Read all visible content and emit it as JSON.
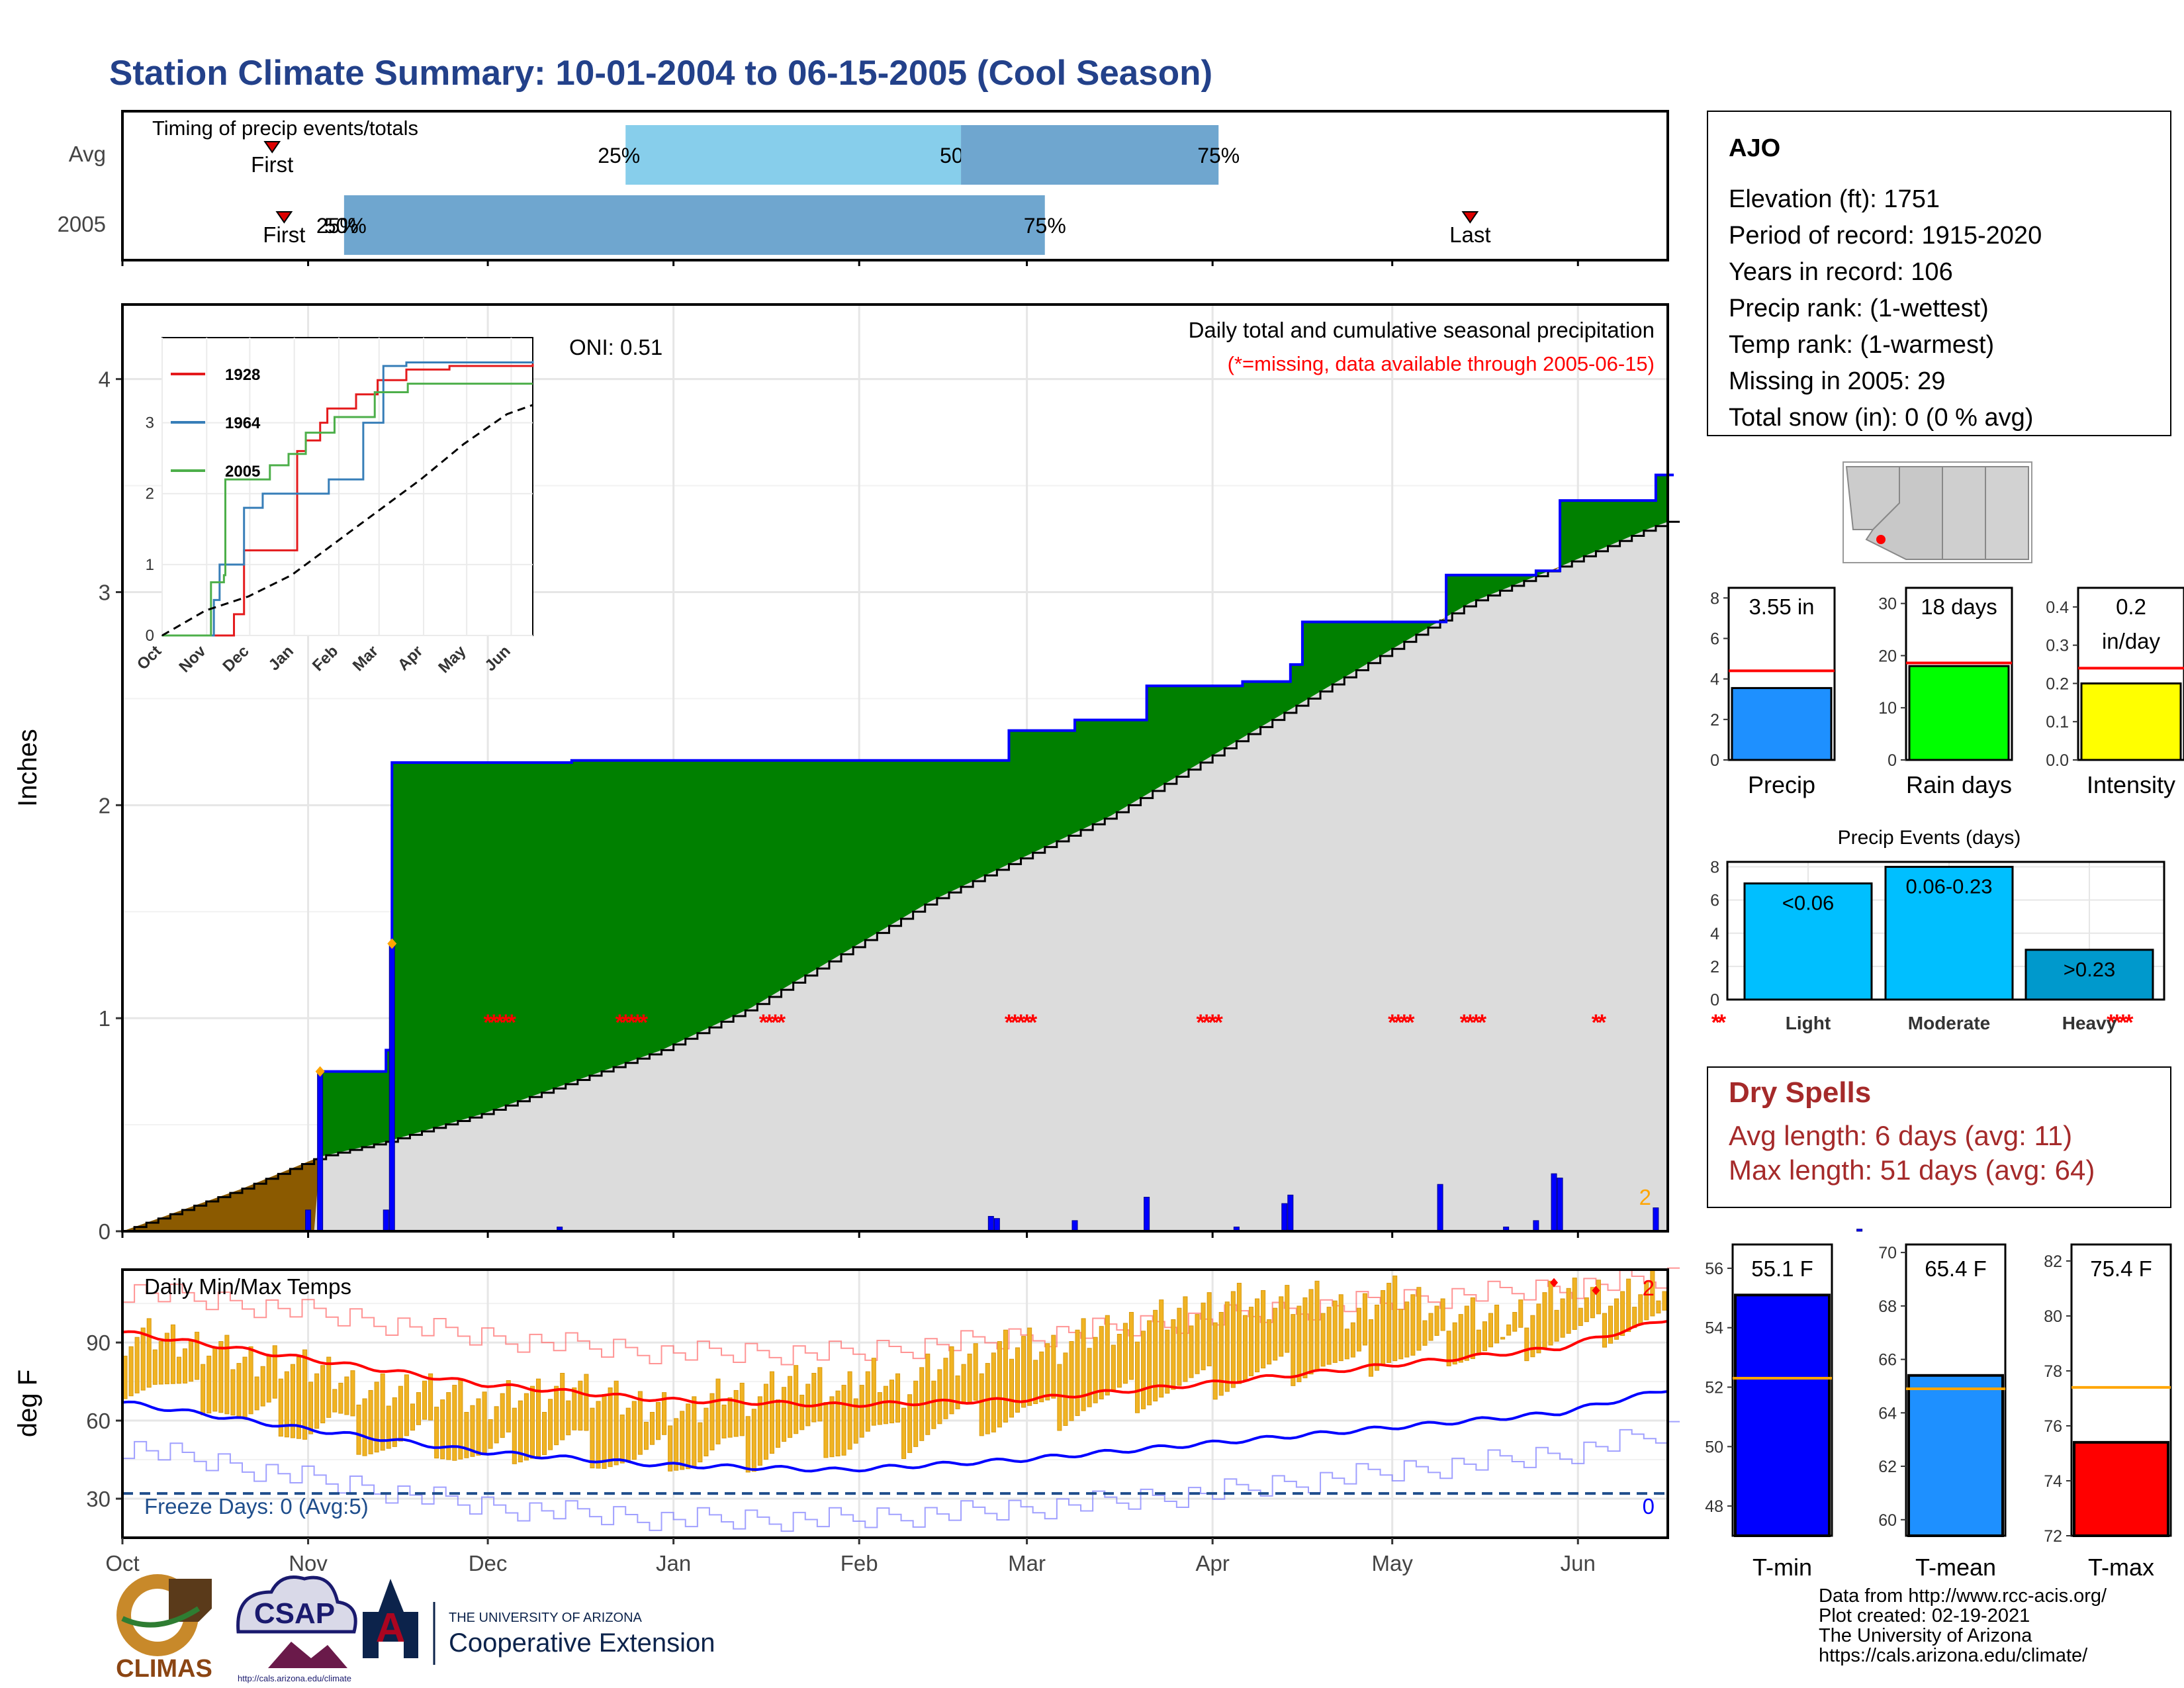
{
  "title": "Station Climate Summary: 10-01-2004 to 06-15-2005 (Cool Season)",
  "colors": {
    "title": "#23418a",
    "missing": "#ff0000",
    "dry_spells": "#a52a2a",
    "cum_obs": "#0000ff",
    "cum_avg_fill": "#8b5a00",
    "cum_above_fill": "#008000",
    "cum_below_fill": "#dcdcdc",
    "tmax": "#ff0000",
    "tmin": "#0000ff",
    "bars_daily_temp": "#f0b323",
    "freeze_line": "#1f4e8c"
  },
  "timing": {
    "title": "Timing of precip events/totals",
    "rows": [
      {
        "label": "Avg",
        "first_label": "First",
        "last_label": "Last",
        "segments": [
          {
            "label_start": "25%",
            "label_end": "50%",
            "start_doy": 84,
            "end_doy": 140,
            "color": "#87ceeb"
          },
          {
            "label_end": "75%",
            "start_doy": 140,
            "end_doy": 183,
            "color": "#6fa6cf"
          }
        ],
        "first_doy": 25,
        "last_doy": 272
      },
      {
        "label": "2005",
        "first_label": "First",
        "last_label": "Last",
        "segments": [
          {
            "label_start": "25%",
            "label_mid": "50%",
            "label_end": "75%",
            "start_doy": 37,
            "end_doy": 154,
            "color": "#6fa6cf"
          }
        ],
        "first_doy": 27,
        "last_doy": 225
      }
    ]
  },
  "main_panel": {
    "y_label": "Inches",
    "oni": "ONI: 0.51",
    "legend_title": "Daily total and cumulative seasonal precipitation",
    "missing_note": "(*=missing, data available through 2005-06-15)",
    "corner_count": "2",
    "y_ticks": [
      "0",
      "1",
      "2",
      "3",
      "4"
    ],
    "missing_marker": "*"
  },
  "inset": {
    "series": [
      {
        "name": "1928",
        "color": "#e41a1c"
      },
      {
        "name": "1964",
        "color": "#377eb8"
      },
      {
        "name": "2005",
        "color": "#4daf4a"
      }
    ],
    "y_ticks": [
      "0",
      "1",
      "2",
      "3"
    ],
    "x_ticks": [
      "Oct",
      "Nov",
      "Dec",
      "Jan",
      "Feb",
      "Mar",
      "Apr",
      "May",
      "Jun"
    ]
  },
  "temp_panel": {
    "y_label": "deg F",
    "title": "Daily Min/Max Temps",
    "freeze_text": "Freeze Days: 0 (Avg:5)",
    "tmax_record_count": "2",
    "tmin_record_count": "0",
    "y_ticks": [
      "30",
      "60",
      "90"
    ]
  },
  "x_axis_months": [
    "Oct",
    "Nov",
    "Dec",
    "Jan",
    "Feb",
    "Mar",
    "Apr",
    "May",
    "Jun"
  ],
  "station": {
    "name": "AJO",
    "lines": [
      "Elevation (ft): 1751",
      "Period of record: 1915-2020",
      "Years in record: 106",
      "Precip rank:  (1-wettest)",
      "Temp rank:  (1-warmest)",
      "Missing in 2005: 29",
      "Total snow (in): 0 (0 % avg)"
    ]
  },
  "mini_bars": [
    {
      "label": "Precip",
      "value_text": "3.55 in",
      "value": 3.55,
      "avg": 4.4,
      "ymax": 8.5,
      "ticks": [
        "0",
        "2",
        "4",
        "6",
        "8"
      ],
      "tick_values": [
        0,
        2,
        4,
        6,
        8
      ],
      "color": "#1e90ff"
    },
    {
      "label": "Rain days",
      "value_text": "18 days",
      "value": 18,
      "avg": 18.6,
      "ymax": 33,
      "ticks": [
        "0",
        "10",
        "20",
        "30"
      ],
      "tick_values": [
        0,
        10,
        20,
        30
      ],
      "color": "#00ff00"
    },
    {
      "label": "Intensity",
      "value_text": "0.2",
      "value_text2": "in/day",
      "value": 0.2,
      "avg": 0.24,
      "ymax": 0.45,
      "ticks": [
        "0.0",
        "0.1",
        "0.2",
        "0.3",
        "0.4"
      ],
      "tick_values": [
        0,
        0.1,
        0.2,
        0.3,
        0.4
      ],
      "color": "#ffff00"
    }
  ],
  "precip_events": {
    "title": "Precip Events (days)",
    "ticks": [
      "0",
      "2",
      "4",
      "6",
      "8"
    ],
    "tick_values": [
      0,
      2,
      4,
      6,
      8
    ],
    "ymax": 8.3,
    "bars": [
      {
        "label": "Light",
        "value_text": "<0.06",
        "value": 7,
        "color": "#00bfff"
      },
      {
        "label": "Moderate",
        "value_text": "0.06-0.23",
        "value": 8,
        "color": "#00bfff"
      },
      {
        "label": "Heavy",
        "value_text": ">0.23",
        "value": 3,
        "color": "#0099cc"
      }
    ]
  },
  "dry_spells": {
    "title": "Dry Spells",
    "avg_line": "Avg length: 6 days (avg: 11)",
    "max_line": "Max length: 51 days (avg: 64)"
  },
  "temp_bars": [
    {
      "label": "T-min",
      "value_text": "55.1 F",
      "value": 55.1,
      "avg": 52.3,
      "ymin": 47,
      "ymax": 56.8,
      "ticks": [
        "48",
        "50",
        "52",
        "54",
        "56"
      ],
      "tick_values": [
        48,
        50,
        52,
        54,
        56
      ],
      "color": "#0000ff"
    },
    {
      "label": "T-mean",
      "value_text": "65.4 F",
      "value": 65.4,
      "avg": 64.9,
      "ymin": 59.4,
      "ymax": 70.3,
      "ticks": [
        "60",
        "62",
        "64",
        "66",
        "68",
        "70"
      ],
      "tick_values": [
        60,
        62,
        64,
        66,
        68,
        70
      ],
      "color": "#1e90ff"
    },
    {
      "label": "T-max",
      "value_text": "75.4 F",
      "value": 75.4,
      "avg": 77.4,
      "ymin": 72,
      "ymax": 82.6,
      "ticks": [
        "72",
        "74",
        "76",
        "78",
        "80",
        "82"
      ],
      "tick_values": [
        72,
        74,
        76,
        78,
        80,
        82
      ],
      "color": "#ff0000"
    }
  ],
  "footer": {
    "lines": [
      "Data from http://www.rcc-acis.org/",
      "Plot created: 02-19-2021",
      "The University of Arizona",
      "https://cals.arizona.edu/climate/"
    ],
    "logo_climas": "CLIMAS",
    "logo_csap": "CSAP",
    "logo_csap_url": "http://cals.arizona.edu/climate",
    "ua_small": "THE UNIVERSITY OF ARIZONA",
    "ua_big": "Cooperative Extension",
    "ua_letter": "A"
  },
  "chart_data": [
    {
      "type": "area",
      "title": "Daily total and cumulative seasonal precipitation",
      "xlabel": "",
      "ylabel": "Inches",
      "ylim": [
        0,
        4.35
      ],
      "x_axis": "day of season (0 = Oct 1)",
      "observed_cumulative": [
        [
          0,
          0
        ],
        [
          33,
          0
        ],
        [
          33,
          0.75
        ],
        [
          44,
          0.75
        ],
        [
          44,
          0.85
        ],
        [
          45,
          2.2
        ],
        [
          75,
          2.21
        ],
        [
          145,
          2.21
        ],
        [
          148,
          2.35
        ],
        [
          158,
          2.35
        ],
        [
          159,
          2.4
        ],
        [
          170,
          2.4
        ],
        [
          171,
          2.56
        ],
        [
          186,
          2.56
        ],
        [
          187,
          2.58
        ],
        [
          194,
          2.58
        ],
        [
          195,
          2.66
        ],
        [
          197,
          2.86
        ],
        [
          220,
          2.86
        ],
        [
          221,
          3.08
        ],
        [
          231,
          3.08
        ],
        [
          236,
          3.1
        ],
        [
          240,
          3.43
        ],
        [
          255,
          3.43
        ],
        [
          256,
          3.55
        ],
        [
          270,
          3.55
        ],
        [
          285,
          3.57
        ],
        [
          287,
          3.57
        ],
        [
          365,
          3.57
        ]
      ],
      "average_cumulative": [
        [
          0,
          0
        ],
        [
          10,
          0.1
        ],
        [
          20,
          0.2
        ],
        [
          33,
          0.35
        ],
        [
          44,
          0.42
        ],
        [
          60,
          0.55
        ],
        [
          75,
          0.7
        ],
        [
          90,
          0.85
        ],
        [
          105,
          1.05
        ],
        [
          120,
          1.3
        ],
        [
          135,
          1.55
        ],
        [
          150,
          1.75
        ],
        [
          165,
          1.95
        ],
        [
          180,
          2.2
        ],
        [
          195,
          2.45
        ],
        [
          210,
          2.7
        ],
        [
          225,
          2.95
        ],
        [
          240,
          3.12
        ],
        [
          255,
          3.3
        ],
        [
          270,
          3.45
        ],
        [
          285,
          3.6
        ],
        [
          300,
          3.7
        ],
        [
          315,
          3.78
        ],
        [
          330,
          3.85
        ],
        [
          345,
          3.9
        ],
        [
          365,
          3.95
        ]
      ],
      "daily_precip": [
        [
          31,
          0.1
        ],
        [
          33,
          0.75
        ],
        [
          44,
          0.1
        ],
        [
          45,
          1.35
        ],
        [
          73,
          0.02
        ],
        [
          145,
          0.07
        ],
        [
          146,
          0.06
        ],
        [
          159,
          0.05
        ],
        [
          171,
          0.16
        ],
        [
          186,
          0.02
        ],
        [
          194,
          0.13
        ],
        [
          195,
          0.17
        ],
        [
          220,
          0.22
        ],
        [
          231,
          0.02
        ],
        [
          236,
          0.05
        ],
        [
          239,
          0.27
        ],
        [
          240,
          0.25
        ],
        [
          256,
          0.11
        ],
        [
          290,
          0.01
        ]
      ],
      "missing_days": [
        61,
        62,
        63,
        64,
        65,
        83,
        84,
        85,
        86,
        87,
        107,
        108,
        109,
        110,
        148,
        149,
        150,
        151,
        152,
        180,
        181,
        182,
        183,
        212,
        213,
        214,
        215,
        224,
        225,
        226,
        227,
        246,
        247,
        266,
        267,
        332,
        333,
        334,
        335
      ]
    },
    {
      "type": "line",
      "title": "",
      "xlabel": "",
      "ylabel": "",
      "ylim": [
        0,
        4.2
      ],
      "x_ticks": [
        "Oct",
        "Nov",
        "Dec",
        "Jan",
        "Feb",
        "Mar",
        "Apr",
        "May",
        "Jun"
      ],
      "series": [
        {
          "name": "1928",
          "x": [
            0,
            40,
            50,
            56,
            57,
            86,
            94,
            100,
            110,
            115,
            135,
            150,
            170,
            200,
            258
          ],
          "y": [
            0,
            0,
            0.3,
            0.3,
            1.2,
            1.2,
            2.6,
            2.75,
            3.0,
            3.2,
            3.4,
            3.6,
            3.75,
            3.8,
            3.83
          ]
        },
        {
          "name": "1964",
          "x": [
            0,
            30,
            36,
            40,
            57,
            70,
            105,
            116,
            138,
            140,
            150,
            154,
            170,
            258
          ],
          "y": [
            0,
            0,
            0.5,
            1.0,
            1.8,
            2.0,
            2.0,
            2.2,
            2.2,
            3.0,
            3.0,
            3.8,
            3.85,
            3.87
          ]
        },
        {
          "name": "2005",
          "x": [
            0,
            33,
            34,
            43,
            44,
            45,
            60,
            75,
            88,
            100,
            120,
            148,
            171,
            186,
            195,
            221,
            240,
            256,
            258
          ],
          "y": [
            0,
            0,
            0.75,
            0.85,
            2.2,
            2.2,
            2.2,
            2.4,
            2.56,
            2.86,
            3.08,
            3.43,
            3.55,
            3.55,
            3.55,
            3.55,
            3.55,
            3.55,
            3.55
          ]
        },
        {
          "name": "average",
          "x": [
            0,
            30,
            60,
            90,
            120,
            150,
            180,
            210,
            240,
            258
          ],
          "y": [
            0,
            0.35,
            0.55,
            0.85,
            1.3,
            1.75,
            2.2,
            2.7,
            3.12,
            3.25
          ]
        }
      ]
    },
    {
      "type": "bar",
      "title": "Daily Min/Max Temps",
      "xlabel": "",
      "ylabel": "deg F",
      "ylim": [
        15,
        118
      ],
      "avg_tmax": [
        [
          0,
          94
        ],
        [
          30,
          84
        ],
        [
          60,
          74
        ],
        [
          90,
          68
        ],
        [
          120,
          66
        ],
        [
          150,
          68
        ],
        [
          180,
          74
        ],
        [
          210,
          81
        ],
        [
          240,
          88
        ],
        [
          258,
          99
        ]
      ],
      "avg_tmin": [
        [
          0,
          67
        ],
        [
          30,
          57
        ],
        [
          60,
          48
        ],
        [
          90,
          43
        ],
        [
          120,
          41
        ],
        [
          150,
          45
        ],
        [
          180,
          51
        ],
        [
          210,
          57
        ],
        [
          240,
          63
        ],
        [
          258,
          72
        ]
      ],
      "record_tmax": [
        [
          0,
          110
        ],
        [
          30,
          102
        ],
        [
          60,
          92
        ],
        [
          90,
          86
        ],
        [
          120,
          86
        ],
        [
          150,
          92
        ],
        [
          180,
          99
        ],
        [
          210,
          106
        ],
        [
          240,
          111
        ],
        [
          258,
          115
        ]
      ],
      "record_tmin": [
        [
          0,
          50
        ],
        [
          30,
          38
        ],
        [
          60,
          27
        ],
        [
          90,
          22
        ],
        [
          120,
          22
        ],
        [
          150,
          26
        ],
        [
          180,
          32
        ],
        [
          210,
          40
        ],
        [
          240,
          47
        ],
        [
          258,
          56
        ]
      ],
      "freeze_line": 32,
      "daily_range_samples": [
        [
          5,
          75,
          92
        ],
        [
          10,
          70,
          90
        ],
        [
          15,
          68,
          88
        ],
        [
          20,
          60,
          82
        ],
        [
          25,
          62,
          84
        ],
        [
          30,
          55,
          80
        ],
        [
          35,
          60,
          78
        ],
        [
          40,
          52,
          72
        ],
        [
          45,
          50,
          70
        ],
        [
          50,
          55,
          74
        ],
        [
          55,
          48,
          70
        ],
        [
          60,
          45,
          65
        ],
        [
          65,
          50,
          72
        ],
        [
          70,
          48,
          68
        ],
        [
          75,
          52,
          75
        ],
        [
          80,
          46,
          70
        ],
        [
          85,
          44,
          65
        ],
        [
          90,
          48,
          66
        ],
        [
          95,
          44,
          62
        ],
        [
          100,
          50,
          72
        ],
        [
          105,
          46,
          68
        ],
        [
          110,
          52,
          74
        ],
        [
          115,
          54,
          77
        ],
        [
          120,
          50,
          70
        ],
        [
          125,
          56,
          78
        ],
        [
          130,
          52,
          72
        ],
        [
          135,
          58,
          80
        ],
        [
          140,
          62,
          84
        ],
        [
          145,
          60,
          86
        ],
        [
          150,
          64,
          90
        ],
        [
          155,
          62,
          88
        ],
        [
          160,
          66,
          92
        ],
        [
          165,
          68,
          95
        ],
        [
          170,
          70,
          98
        ],
        [
          175,
          72,
          100
        ],
        [
          180,
          74,
          104
        ],
        [
          185,
          76,
          106
        ],
        [
          190,
          78,
          104
        ],
        [
          195,
          80,
          108
        ],
        [
          200,
          82,
          106
        ],
        [
          205,
          80,
          100
        ],
        [
          210,
          86,
          110
        ],
        [
          215,
          84,
          106
        ],
        [
          220,
          88,
          102
        ],
        [
          225,
          86,
          100
        ],
        [
          230,
          88,
          98
        ],
        [
          235,
          90,
          104
        ],
        [
          240,
          92,
          108
        ],
        [
          245,
          94,
          110
        ],
        [
          250,
          96,
          106
        ],
        [
          255,
          98,
          112
        ]
      ]
    }
  ]
}
